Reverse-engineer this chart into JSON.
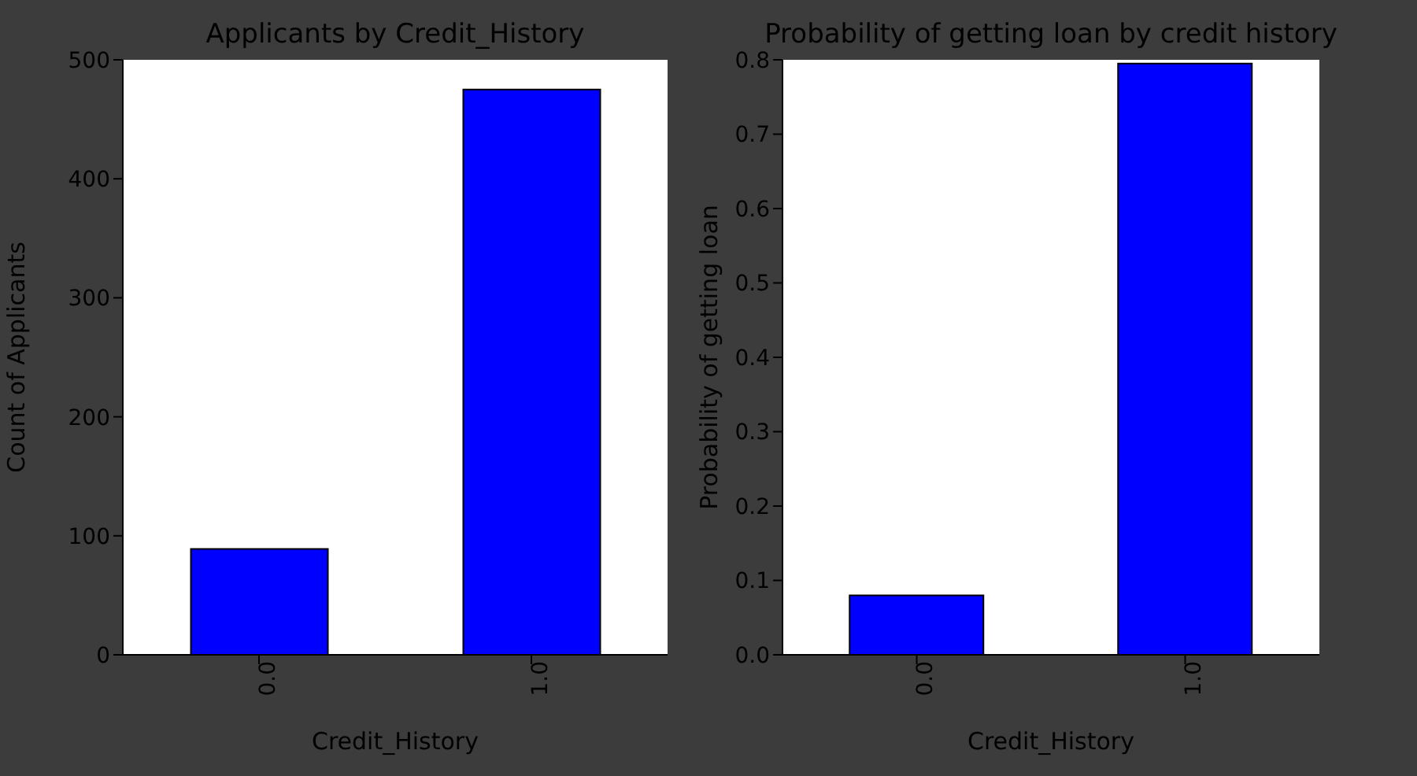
{
  "chart_data": [
    {
      "type": "bar",
      "title": "Applicants by Credit_History",
      "xlabel": "Credit_History",
      "ylabel": "Count of Applicants",
      "categories": [
        "0.0",
        "1.0"
      ],
      "values": [
        89,
        475
      ],
      "color": "#0000ff",
      "ylim": [
        0,
        500
      ],
      "yticks": [
        0,
        100,
        200,
        300,
        400,
        500
      ],
      "grid": false,
      "legend": false
    },
    {
      "type": "bar",
      "title": "Probability of getting loan by credit history",
      "xlabel": "Credit_History",
      "ylabel": "Probability of getting loan",
      "categories": [
        "0.0",
        "1.0"
      ],
      "values": [
        0.08,
        0.795
      ],
      "color": "#0000ff",
      "ylim": [
        0,
        0.8
      ],
      "yticks": [
        {
          "value": 0,
          "label": "0.0"
        },
        {
          "value": 0.1,
          "label": "0.1"
        },
        {
          "value": 0.2,
          "label": "0.2"
        },
        {
          "value": 0.3,
          "label": "0.3"
        },
        {
          "value": 0.4,
          "label": "0.4"
        },
        {
          "value": 0.5,
          "label": "0.5"
        },
        {
          "value": 0.6,
          "label": "0.6"
        },
        {
          "value": 0.7,
          "label": "0.7"
        },
        {
          "value": 0.8,
          "label": "0.8"
        }
      ],
      "grid": false,
      "legend": false
    }
  ]
}
